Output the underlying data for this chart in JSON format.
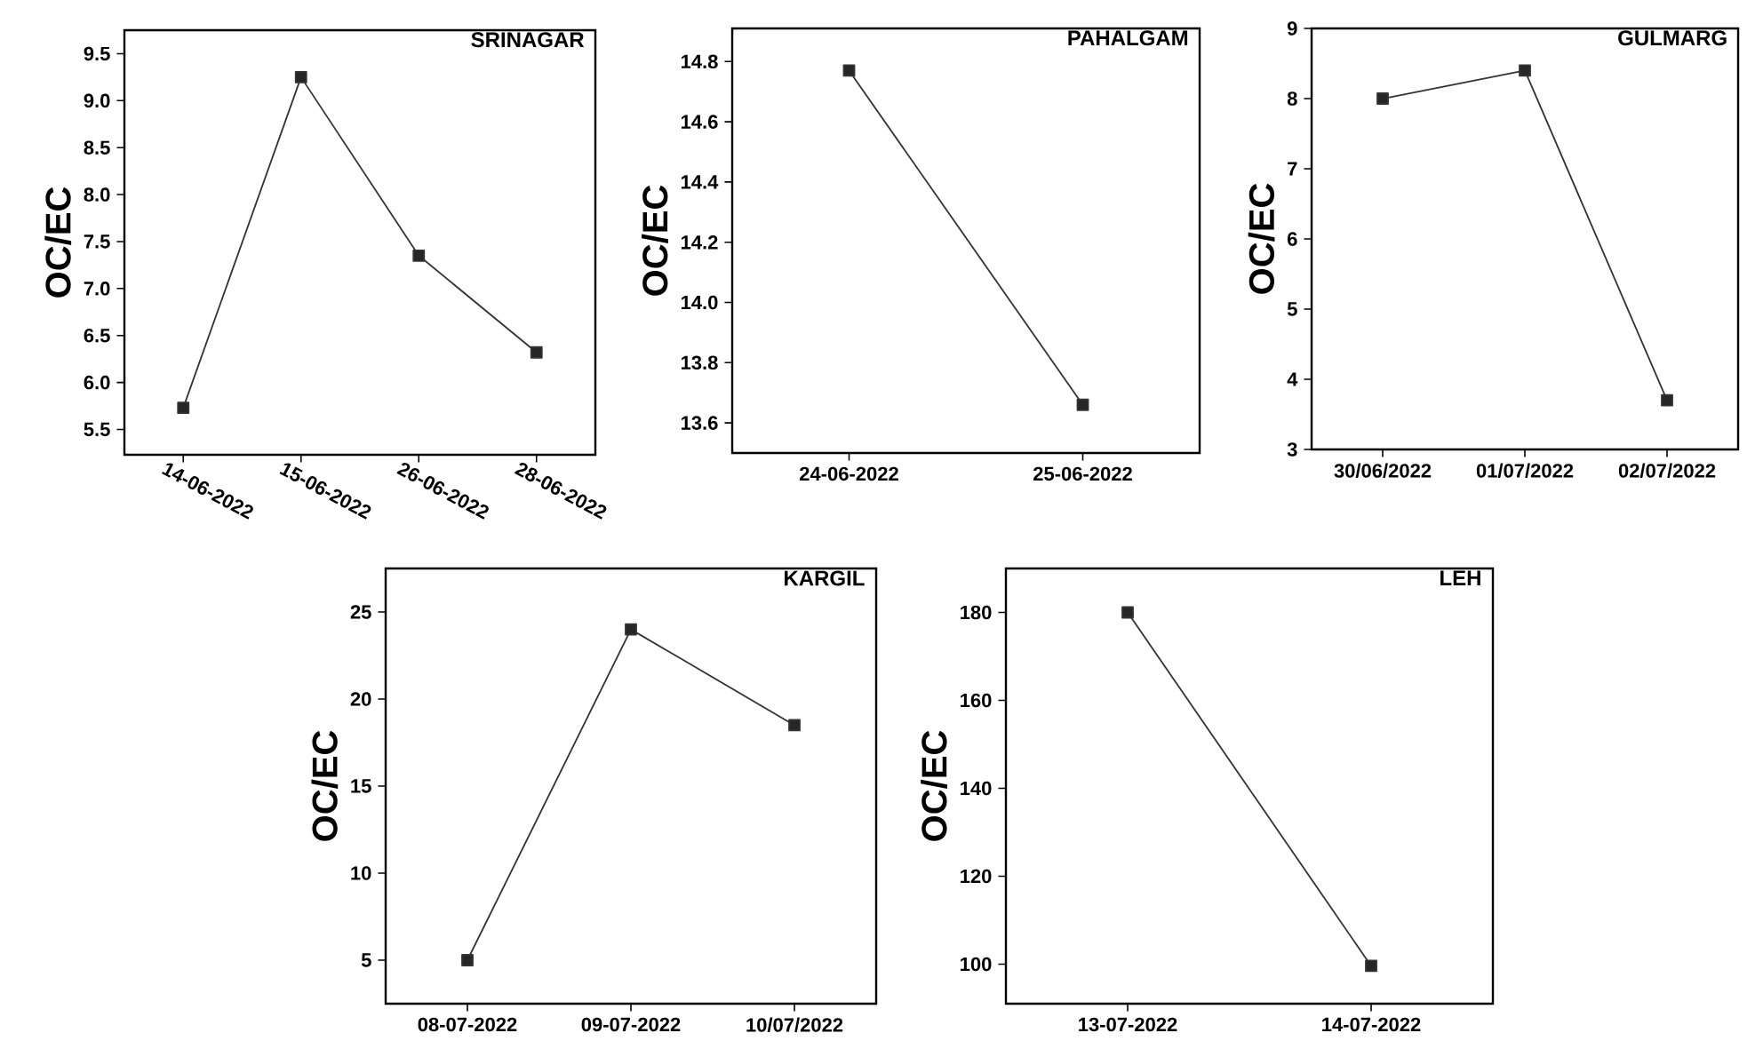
{
  "chart_data": [
    {
      "type": "line",
      "title": "SRINAGAR",
      "ylabel": "OC/EC",
      "categories": [
        "14-06-2022",
        "15-06-2022",
        "26-06-2022",
        "28-06-2022"
      ],
      "values": [
        5.73,
        9.25,
        7.35,
        6.32
      ],
      "color": "#333333",
      "marker": "square",
      "ylim": [
        5.23,
        9.75
      ],
      "yticks": [
        5.5,
        {
          "value": 6,
          "label": "6.0"
        },
        6.5,
        {
          "value": 7,
          "label": "7.0"
        },
        7.5,
        {
          "value": 8,
          "label": "8.0"
        },
        8.5,
        {
          "value": 9,
          "label": "9.0"
        },
        9.5
      ]
    },
    {
      "type": "line",
      "title": "PAHALGAM",
      "ylabel": "OC/EC",
      "categories": [
        "24-06-2022",
        "25-06-2022"
      ],
      "values": [
        14.77,
        13.66
      ],
      "color": "#333333",
      "marker": "square",
      "ylim": [
        13.5,
        14.91
      ],
      "yticks": [
        13.6,
        13.8,
        {
          "value": 14,
          "label": "14.0"
        },
        14.2,
        14.4,
        14.6,
        14.8
      ]
    },
    {
      "type": "line",
      "title": "GULMARG",
      "ylabel": "OC/EC",
      "categories": [
        "30/06/2022",
        "01/07/2022",
        "02/07/2022"
      ],
      "values": [
        8.0,
        8.4,
        3.7
      ],
      "color": "#333333",
      "marker": "square",
      "ylim": [
        3,
        9
      ],
      "yticks": [
        3,
        4,
        5,
        6,
        7,
        8,
        9
      ]
    },
    {
      "type": "line",
      "title": "KARGIL",
      "ylabel": "OC/EC",
      "categories": [
        "08-07-2022",
        "09-07-2022",
        "10/07/2022"
      ],
      "values": [
        5.0,
        24.0,
        18.5
      ],
      "color": "#333333",
      "marker": "square",
      "ylim": [
        2.5,
        27.5
      ],
      "yticks": [
        5,
        10,
        15,
        20,
        25
      ]
    },
    {
      "type": "line",
      "title": "LEH",
      "ylabel": "OC/EC",
      "categories": [
        "13-07-2022",
        "14-07-2022"
      ],
      "values": [
        180,
        99.6
      ],
      "color": "#333333",
      "marker": "square",
      "ylim": [
        91,
        190
      ],
      "yticks": [
        100,
        120,
        140,
        160,
        180
      ]
    }
  ]
}
